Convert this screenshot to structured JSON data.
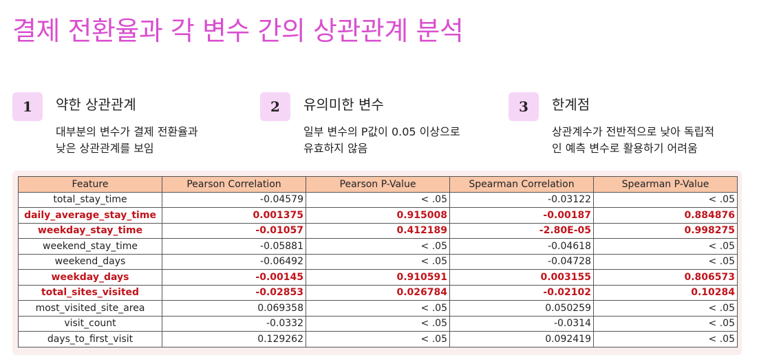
{
  "title": "결제 전환율과 각 변수 간의 상관관계 분석",
  "cards": [
    {
      "num": "1",
      "head": "약한 상관관계",
      "desc": "대부분의 변수가 결제 전환율과\n낮은 상관관계를 보임"
    },
    {
      "num": "2",
      "head": "유의미한 변수",
      "desc": "일부 변수의 P값이 0.05 이상으로\n유효하지 않음"
    },
    {
      "num": "3",
      "head": "한계점",
      "desc": "상관계수가 전반적으로 낮아 독립적\n인 예측 변수로 활용하기 어려움"
    }
  ],
  "table": {
    "headers": [
      "Feature",
      "Pearson Correlation",
      "Pearson P-Value",
      "Spearman Correlation",
      "Spearman P-Value"
    ],
    "rows": [
      {
        "cells": [
          "total_stay_time",
          "-0.04579",
          "< .05",
          "-0.03122",
          "< .05"
        ],
        "highlight": false
      },
      {
        "cells": [
          "daily_average_stay_time",
          "0.001375",
          "0.915008",
          "-0.00187",
          "0.884876"
        ],
        "highlight": true
      },
      {
        "cells": [
          "weekday_stay_time",
          "-0.01057",
          "0.412189",
          "-2.80E-05",
          "0.998275"
        ],
        "highlight": true
      },
      {
        "cells": [
          "weekend_stay_time",
          "-0.05881",
          "< .05",
          "-0.04618",
          "< .05"
        ],
        "highlight": false
      },
      {
        "cells": [
          "weekend_days",
          "-0.06492",
          "< .05",
          "-0.04728",
          "< .05"
        ],
        "highlight": false
      },
      {
        "cells": [
          "weekday_days",
          "-0.00145",
          "0.910591",
          "0.003155",
          "0.806573"
        ],
        "highlight": true
      },
      {
        "cells": [
          "total_sites_visited",
          "-0.02853",
          "0.026784",
          "-0.02102",
          "0.10284"
        ],
        "highlight": true
      },
      {
        "cells": [
          "most_visited_site_area",
          "0.069358",
          "< .05",
          "0.050259",
          "< .05"
        ],
        "highlight": false
      },
      {
        "cells": [
          "visit_count",
          "-0.0332",
          "< .05",
          "-0.0314",
          "< .05"
        ],
        "highlight": false
      },
      {
        "cells": [
          "days_to_first_visit",
          "0.129262",
          "< .05",
          "0.092419",
          "< .05"
        ],
        "highlight": false
      }
    ]
  },
  "colors": {
    "title": "#d94fcf",
    "badge_bg": "#f6d6f6",
    "header_bg": "#f9c6a8",
    "highlight_text": "#c0141b",
    "panel_bg": "#fbeeee"
  }
}
